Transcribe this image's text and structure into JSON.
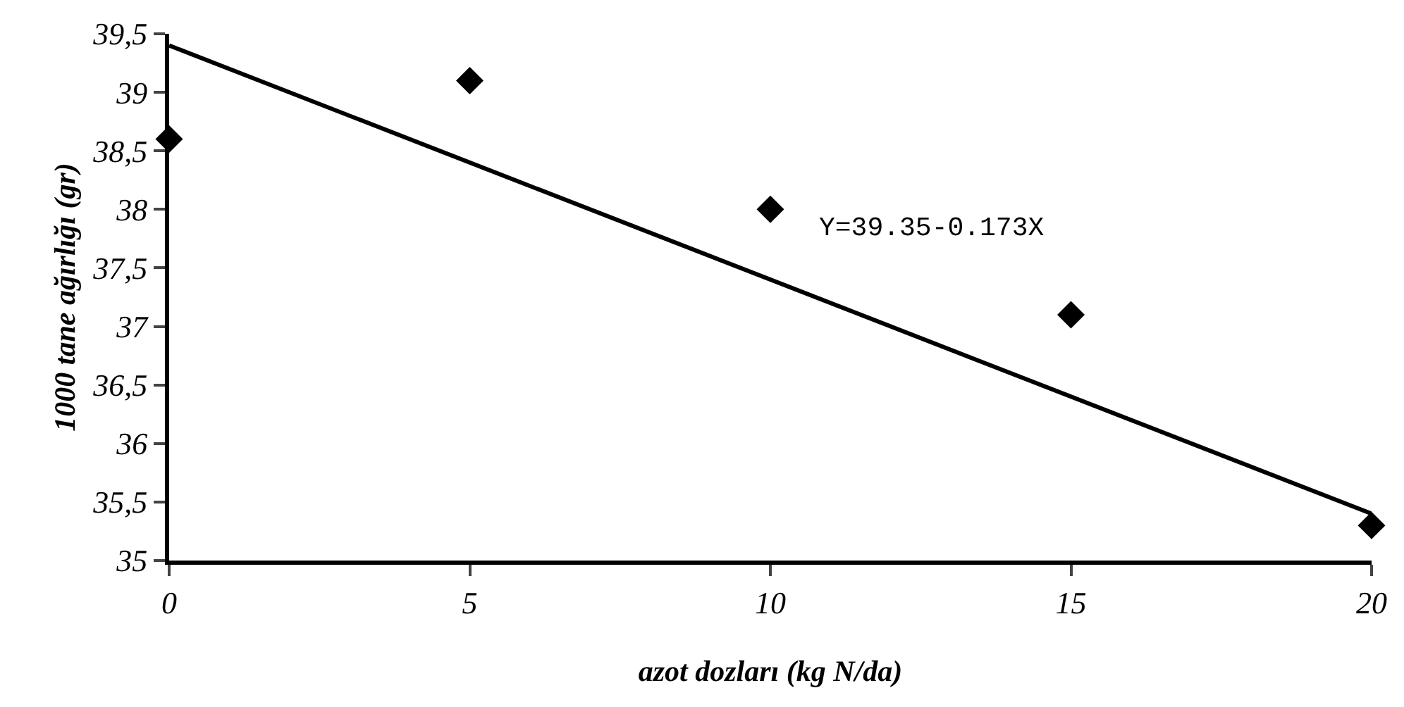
{
  "chart_data": {
    "type": "scatter",
    "xlabel": "azot dozları (kg N/da)",
    "ylabel": "1000 tane ağırlığı (gr)",
    "x": [
      0,
      5,
      10,
      15,
      20
    ],
    "series": [
      {
        "color": "#000000",
        "marker": "diamond",
        "values": [
          38.6,
          39.1,
          38.0,
          37.1,
          35.3
        ]
      },
      {
        "type": "line",
        "color": "#000000",
        "marker": "none",
        "line_style": "solid",
        "x": [
          0,
          20
        ],
        "values": [
          39.4,
          35.4
        ]
      }
    ],
    "xlim": [
      0,
      20
    ],
    "xticks": [
      0,
      5,
      10,
      15,
      20
    ],
    "ylim": [
      35,
      39.5
    ],
    "yticks": [
      {
        "value": 35,
        "label": "35"
      },
      {
        "value": 35.5,
        "label": "35,5"
      },
      {
        "value": 36,
        "label": "36"
      },
      {
        "value": 36.5,
        "label": "36,5"
      },
      {
        "value": 37,
        "label": "37"
      },
      {
        "value": 37.5,
        "label": "37,5"
      },
      {
        "value": 38,
        "label": "38"
      },
      {
        "value": 38.5,
        "label": "38,5"
      },
      {
        "value": 39,
        "label": "39"
      },
      {
        "value": 39.5,
        "label": "39,5"
      }
    ],
    "annotations": [
      "Y=39.35-0.173X"
    ],
    "grid": false
  }
}
